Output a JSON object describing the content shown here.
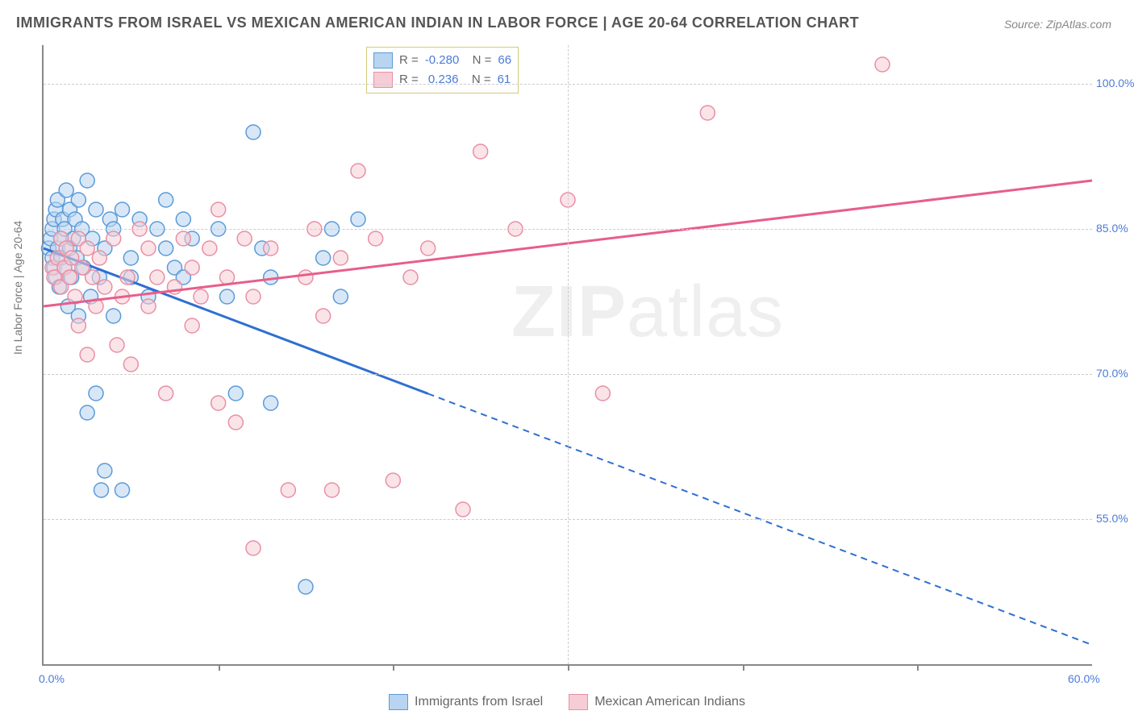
{
  "title": "IMMIGRANTS FROM ISRAEL VS MEXICAN AMERICAN INDIAN IN LABOR FORCE | AGE 20-64 CORRELATION CHART",
  "source": "Source: ZipAtlas.com",
  "y_axis_title": "In Labor Force | Age 20-64",
  "watermark_pre": "ZIP",
  "watermark_post": "atlas",
  "chart": {
    "type": "scatter",
    "xlim": [
      0,
      60
    ],
    "ylim": [
      40,
      104
    ],
    "x_ticks_minor": [
      10,
      20,
      30,
      40,
      50
    ],
    "x_labels": [
      {
        "v": 0,
        "t": "0.0%"
      },
      {
        "v": 60,
        "t": "60.0%"
      }
    ],
    "y_gridlines": [
      55,
      70,
      85,
      100
    ],
    "y_labels": [
      {
        "v": 55,
        "t": "55.0%"
      },
      {
        "v": 70,
        "t": "70.0%"
      },
      {
        "v": 85,
        "t": "85.0%"
      },
      {
        "v": 100,
        "t": "100.0%"
      }
    ],
    "background_color": "#ffffff",
    "grid_color": "#cccccc",
    "axis_color": "#888888",
    "label_color": "#4a7bd8",
    "marker_radius": 9,
    "marker_opacity": 0.55,
    "series": [
      {
        "key": "israel",
        "name": "Immigrants from Israel",
        "color_fill": "#b8d4f0",
        "color_stroke": "#5a9bd8",
        "line_color": "#2f6fd0",
        "R": "-0.280",
        "N": "66",
        "trend": {
          "x1": 0,
          "y1": 83,
          "x2": 60,
          "y2": 42,
          "solid_until_x": 22
        },
        "points": [
          [
            0.3,
            83
          ],
          [
            0.4,
            84
          ],
          [
            0.5,
            82
          ],
          [
            0.5,
            85
          ],
          [
            0.6,
            86
          ],
          [
            0.6,
            81
          ],
          [
            0.7,
            87
          ],
          [
            0.7,
            80
          ],
          [
            0.8,
            83
          ],
          [
            0.8,
            88
          ],
          [
            0.9,
            79
          ],
          [
            1.0,
            84
          ],
          [
            1.0,
            82
          ],
          [
            1.1,
            86
          ],
          [
            1.2,
            81
          ],
          [
            1.2,
            85
          ],
          [
            1.3,
            89
          ],
          [
            1.4,
            77
          ],
          [
            1.5,
            83
          ],
          [
            1.5,
            87
          ],
          [
            1.6,
            80
          ],
          [
            1.7,
            84
          ],
          [
            1.8,
            86
          ],
          [
            1.9,
            82
          ],
          [
            2.0,
            88
          ],
          [
            2.0,
            76
          ],
          [
            2.2,
            85
          ],
          [
            2.3,
            81
          ],
          [
            2.5,
            90
          ],
          [
            2.5,
            66
          ],
          [
            2.7,
            78
          ],
          [
            2.8,
            84
          ],
          [
            3.0,
            87
          ],
          [
            3.0,
            68
          ],
          [
            3.2,
            80
          ],
          [
            3.3,
            58
          ],
          [
            3.5,
            60
          ],
          [
            3.5,
            83
          ],
          [
            3.8,
            86
          ],
          [
            4.0,
            76
          ],
          [
            4.0,
            85
          ],
          [
            4.5,
            87
          ],
          [
            4.5,
            58
          ],
          [
            5.0,
            82
          ],
          [
            5.0,
            80
          ],
          [
            5.5,
            86
          ],
          [
            6.0,
            78
          ],
          [
            6.5,
            85
          ],
          [
            7.0,
            88
          ],
          [
            7.0,
            83
          ],
          [
            7.5,
            81
          ],
          [
            8.0,
            86
          ],
          [
            8.0,
            80
          ],
          [
            8.5,
            84
          ],
          [
            10.0,
            85
          ],
          [
            10.5,
            78
          ],
          [
            11.0,
            68
          ],
          [
            12.0,
            95
          ],
          [
            12.5,
            83
          ],
          [
            13.0,
            80
          ],
          [
            13.0,
            67
          ],
          [
            15.0,
            48
          ],
          [
            16.0,
            82
          ],
          [
            16.5,
            85
          ],
          [
            17.0,
            78
          ],
          [
            18.0,
            86
          ]
        ]
      },
      {
        "key": "mexican",
        "name": "Mexican American Indians",
        "color_fill": "#f6cdd6",
        "color_stroke": "#e98fa5",
        "line_color": "#e85d8a",
        "R": " 0.236",
        "N": "61",
        "trend": {
          "x1": 0,
          "y1": 77,
          "x2": 60,
          "y2": 90,
          "solid_until_x": 60
        },
        "points": [
          [
            0.5,
            81
          ],
          [
            0.6,
            80
          ],
          [
            0.8,
            82
          ],
          [
            1.0,
            84
          ],
          [
            1.0,
            79
          ],
          [
            1.2,
            81
          ],
          [
            1.3,
            83
          ],
          [
            1.5,
            80
          ],
          [
            1.6,
            82
          ],
          [
            1.8,
            78
          ],
          [
            2.0,
            84
          ],
          [
            2.0,
            75
          ],
          [
            2.2,
            81
          ],
          [
            2.5,
            83
          ],
          [
            2.5,
            72
          ],
          [
            2.8,
            80
          ],
          [
            3.0,
            77
          ],
          [
            3.2,
            82
          ],
          [
            3.5,
            79
          ],
          [
            4.0,
            84
          ],
          [
            4.2,
            73
          ],
          [
            4.5,
            78
          ],
          [
            4.8,
            80
          ],
          [
            5.0,
            71
          ],
          [
            5.5,
            85
          ],
          [
            6.0,
            77
          ],
          [
            6.0,
            83
          ],
          [
            6.5,
            80
          ],
          [
            7.0,
            68
          ],
          [
            7.5,
            79
          ],
          [
            8.0,
            84
          ],
          [
            8.5,
            75
          ],
          [
            8.5,
            81
          ],
          [
            9.0,
            78
          ],
          [
            9.5,
            83
          ],
          [
            10.0,
            67
          ],
          [
            10.0,
            87
          ],
          [
            10.5,
            80
          ],
          [
            11.0,
            65
          ],
          [
            11.5,
            84
          ],
          [
            12.0,
            78
          ],
          [
            12.0,
            52
          ],
          [
            13.0,
            83
          ],
          [
            14.0,
            58
          ],
          [
            15.0,
            80
          ],
          [
            15.5,
            85
          ],
          [
            16.0,
            76
          ],
          [
            16.5,
            58
          ],
          [
            17.0,
            82
          ],
          [
            18.0,
            91
          ],
          [
            19.0,
            84
          ],
          [
            20.0,
            59
          ],
          [
            21.0,
            80
          ],
          [
            22.0,
            83
          ],
          [
            24.0,
            56
          ],
          [
            25.0,
            93
          ],
          [
            27.0,
            85
          ],
          [
            30.0,
            88
          ],
          [
            32.0,
            68
          ],
          [
            38.0,
            97
          ],
          [
            48.0,
            102
          ]
        ]
      }
    ]
  },
  "legend_bottom": [
    {
      "swatch_fill": "#b8d4f0",
      "swatch_stroke": "#5a9bd8",
      "label": "Immigrants from Israel"
    },
    {
      "swatch_fill": "#f6cdd6",
      "swatch_stroke": "#e98fa5",
      "label": "Mexican American Indians"
    }
  ]
}
